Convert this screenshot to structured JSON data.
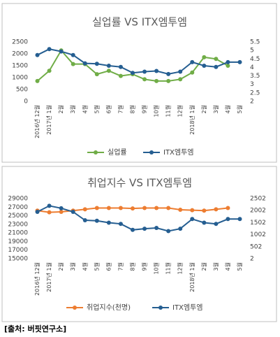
{
  "chart_data": [
    {
      "type": "line",
      "title": "실업률 VS ITX엠투엠",
      "categories": [
        "2016년 12월",
        "2017년 1월",
        "2월",
        "3월",
        "4월",
        "5월",
        "6월",
        "7월",
        "8월",
        "9월",
        "10월",
        "11월",
        "12월",
        "2018년 1월",
        "2월",
        "3월",
        "4월",
        "5월"
      ],
      "series": [
        {
          "name": "실업률",
          "color": "#70ad47",
          "axis": "y2",
          "values": [
            3.2,
            3.8,
            5.0,
            4.2,
            4.2,
            3.6,
            3.8,
            3.5,
            3.6,
            3.3,
            3.2,
            3.2,
            3.3,
            3.7,
            4.6,
            4.5,
            4.1,
            null
          ]
        },
        {
          "name": "ITX엠투엠",
          "color": "#255e91",
          "values": [
            1950,
            2200,
            2100,
            1950,
            1600,
            1580,
            1500,
            1450,
            1200,
            1250,
            1280,
            1150,
            1250,
            1650,
            1500,
            1450,
            1650,
            1650
          ]
        }
      ],
      "ylim": [
        0,
        2500
      ],
      "yticks": [
        0,
        500,
        1000,
        1500,
        2000,
        2500
      ],
      "y2lim": [
        2,
        5.5
      ],
      "y2ticks": [
        2,
        2.5,
        3,
        3.5,
        4,
        4.5,
        5,
        5.5
      ],
      "legend": "bottom"
    },
    {
      "type": "line",
      "title": "취업지수 VS ITX엠투엠",
      "categories": [
        "2016년 12월",
        "2017년 1월",
        "2월",
        "3월",
        "4월",
        "5월",
        "6월",
        "7월",
        "8월",
        "9월",
        "10월",
        "11월",
        "12월",
        "2018년 1월",
        "2월",
        "3월",
        "4월",
        "5월"
      ],
      "series": [
        {
          "name": "취업지수(천명)",
          "color": "#ed7d31",
          "values": [
            26200,
            25800,
            25900,
            26200,
            26500,
            26800,
            26800,
            26800,
            26700,
            26800,
            26800,
            26800,
            26400,
            26300,
            26200,
            26500,
            26800,
            null
          ]
        },
        {
          "name": "ITX엠투엠",
          "color": "#255e91",
          "axis": "y2",
          "values": [
            1950,
            2200,
            2100,
            1950,
            1600,
            1580,
            1500,
            1450,
            1200,
            1250,
            1280,
            1150,
            1250,
            1650,
            1500,
            1450,
            1650,
            1650
          ]
        }
      ],
      "ylim": [
        15000,
        29000
      ],
      "yticks": [
        15000,
        17000,
        19000,
        21000,
        23000,
        25000,
        27000,
        29000
      ],
      "y2lim": [
        2,
        2502
      ],
      "y2ticks": [
        2,
        502,
        1002,
        1502,
        2002,
        2502
      ],
      "legend": "bottom"
    }
  ],
  "source": "[출처: 버핏연구소]"
}
